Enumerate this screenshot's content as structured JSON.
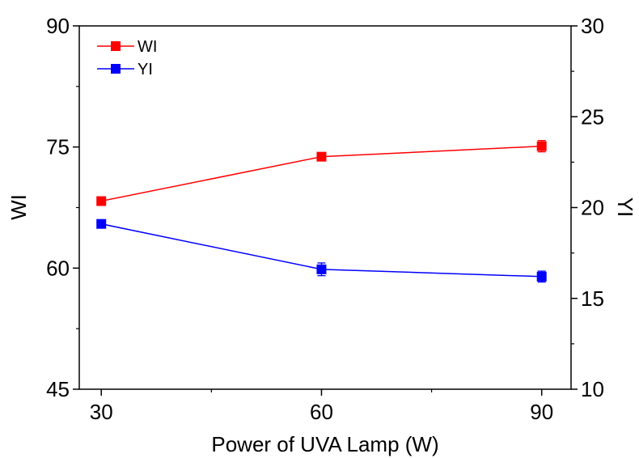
{
  "chart_data": {
    "type": "line",
    "x": [
      30,
      60,
      90
    ],
    "xlabel": "Power of UVA Lamp (W)",
    "xlim": [
      27,
      94
    ],
    "xticks": [
      30,
      60,
      90
    ],
    "ylabel_left": "WI",
    "ylim_left": [
      45,
      90
    ],
    "yticks_left": [
      45,
      60,
      75,
      90
    ],
    "ylabel_right": "YI",
    "ylim_right": [
      10,
      30
    ],
    "yticks_right": [
      10,
      15,
      20,
      25,
      30
    ],
    "series": [
      {
        "name": "WI",
        "axis": "left",
        "color": "#ff0000",
        "values": [
          68.3,
          73.8,
          75.1
        ],
        "errors": [
          0.4,
          0.5,
          0.7
        ]
      },
      {
        "name": "YI",
        "axis": "right",
        "color": "#0000ff",
        "values": [
          19.1,
          16.6,
          16.2
        ],
        "errors": [
          0.2,
          0.35,
          0.3
        ]
      }
    ],
    "legend_position": "top-left",
    "grid": false
  }
}
